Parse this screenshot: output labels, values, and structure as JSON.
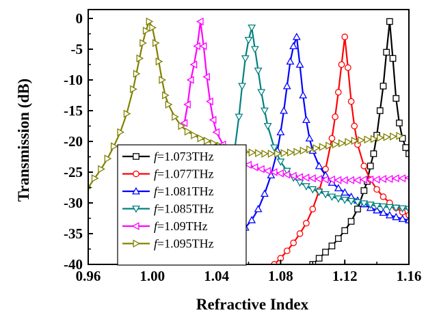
{
  "chart_data": {
    "type": "line",
    "xlabel": "Refractive Index",
    "ylabel": "Transmission (dB)",
    "xlim": [
      0.96,
      1.16
    ],
    "ylim": [
      -40,
      1
    ],
    "xticks": [
      0.96,
      1.0,
      1.04,
      1.08,
      1.12,
      1.16
    ],
    "xtick_labels": [
      "0.96",
      "1.00",
      "1.04",
      "1.08",
      "1.12",
      "1.16"
    ],
    "yticks": [
      0,
      -5,
      -10,
      -15,
      -20,
      -25,
      -30,
      -35,
      -40
    ],
    "ytick_labels": [
      "0",
      "-5",
      "-10",
      "-15",
      "-20",
      "-25",
      "-30",
      "-35",
      "-40"
    ],
    "legend_placement": "lower-left",
    "series": [
      {
        "name_prefix": "f",
        "name_suffix": "=1.073THz",
        "color": "#000000",
        "marker": "square",
        "x": [
          1.1,
          1.104,
          1.108,
          1.112,
          1.116,
          1.12,
          1.124,
          1.128,
          1.132,
          1.134,
          1.136,
          1.138,
          1.14,
          1.142,
          1.144,
          1.146,
          1.148,
          1.15,
          1.152,
          1.154,
          1.156,
          1.158,
          1.16
        ],
        "y": [
          -40.0,
          -39.0,
          -38.0,
          -37.0,
          -35.8,
          -34.5,
          -33.0,
          -31.0,
          -28.0,
          -26.5,
          -24.0,
          -22.0,
          -19.0,
          -15.0,
          -11.0,
          -5.5,
          -0.5,
          -6.5,
          -13.0,
          -17.0,
          -19.5,
          -21.0,
          -22.0
        ]
      },
      {
        "name_prefix": "f",
        "name_suffix": "=1.077THz",
        "color": "#ff0000",
        "marker": "circle",
        "x": [
          1.076,
          1.08,
          1.084,
          1.088,
          1.092,
          1.096,
          1.1,
          1.104,
          1.108,
          1.112,
          1.114,
          1.116,
          1.118,
          1.12,
          1.122,
          1.124,
          1.126,
          1.128,
          1.132,
          1.136,
          1.14,
          1.144,
          1.148,
          1.152,
          1.156,
          1.16
        ],
        "y": [
          -40.0,
          -39.0,
          -37.8,
          -36.5,
          -35.0,
          -33.3,
          -31.0,
          -28.0,
          -24.5,
          -19.5,
          -16.0,
          -12.0,
          -7.5,
          -3.0,
          -8.0,
          -13.5,
          -17.5,
          -20.5,
          -24.0,
          -26.2,
          -27.8,
          -29.0,
          -30.0,
          -30.8,
          -31.5,
          -32.0
        ]
      },
      {
        "name_prefix": "f",
        "name_suffix": "=1.081THz",
        "color": "#0000ff",
        "marker": "triangle-up",
        "x": [
          1.054,
          1.058,
          1.062,
          1.066,
          1.07,
          1.074,
          1.078,
          1.08,
          1.082,
          1.084,
          1.086,
          1.088,
          1.09,
          1.092,
          1.094,
          1.096,
          1.098,
          1.1,
          1.104,
          1.108,
          1.112,
          1.116,
          1.12,
          1.124,
          1.128,
          1.132,
          1.136,
          1.14,
          1.144,
          1.148,
          1.152,
          1.156,
          1.16
        ],
        "y": [
          -35.0,
          -34.0,
          -32.8,
          -31.0,
          -28.5,
          -25.5,
          -21.5,
          -18.5,
          -15.0,
          -11.0,
          -7.0,
          -4.5,
          -3.0,
          -7.5,
          -12.5,
          -16.5,
          -19.5,
          -21.5,
          -24.0,
          -25.5,
          -26.7,
          -27.6,
          -28.3,
          -29.0,
          -29.6,
          -30.2,
          -30.8,
          -31.2,
          -31.6,
          -32.0,
          -32.3,
          -32.6,
          -32.8
        ]
      },
      {
        "name_prefix": "f",
        "name_suffix": "=1.085THz",
        "color": "#008080",
        "marker": "triangle-down",
        "x": [
          1.046,
          1.05,
          1.054,
          1.056,
          1.058,
          1.06,
          1.062,
          1.064,
          1.066,
          1.068,
          1.07,
          1.072,
          1.076,
          1.08,
          1.084,
          1.088,
          1.092,
          1.096,
          1.1,
          1.104,
          1.108,
          1.112,
          1.116,
          1.12,
          1.124,
          1.128,
          1.132,
          1.136,
          1.14,
          1.144,
          1.148,
          1.152,
          1.156,
          1.16
        ],
        "y": [
          -30.0,
          -24.0,
          -16.0,
          -11.0,
          -6.5,
          -3.5,
          -1.5,
          -5.0,
          -8.5,
          -12.0,
          -15.0,
          -17.5,
          -21.0,
          -23.3,
          -24.8,
          -25.9,
          -26.7,
          -27.3,
          -27.8,
          -28.2,
          -28.6,
          -29.0,
          -29.3,
          -29.5,
          -29.7,
          -29.9,
          -30.1,
          -30.3,
          -30.5,
          -30.6,
          -30.7,
          -30.8,
          -30.9,
          -31.0
        ]
      },
      {
        "name_prefix": "f",
        "name_suffix": "=1.09THz",
        "color": "#ff00ff",
        "marker": "triangle-left",
        "x": [
          1.02,
          1.022,
          1.024,
          1.026,
          1.028,
          1.03,
          1.032,
          1.034,
          1.036,
          1.038,
          1.04,
          1.044,
          1.048,
          1.052,
          1.056,
          1.06,
          1.064,
          1.068,
          1.072,
          1.076,
          1.08,
          1.084,
          1.088,
          1.092,
          1.096,
          1.1,
          1.104,
          1.108,
          1.112,
          1.116,
          1.12,
          1.124,
          1.128,
          1.132,
          1.136,
          1.14,
          1.144,
          1.148,
          1.152,
          1.156,
          1.16
        ],
        "y": [
          -17.0,
          -14.0,
          -10.0,
          -7.5,
          -4.5,
          -0.5,
          -4.5,
          -9.5,
          -13.5,
          -16.5,
          -18.5,
          -20.5,
          -21.8,
          -22.7,
          -23.3,
          -23.8,
          -24.2,
          -24.5,
          -24.8,
          -25.0,
          -25.2,
          -25.4,
          -25.6,
          -25.8,
          -25.9,
          -26.0,
          -26.1,
          -26.2,
          -26.2,
          -26.3,
          -26.3,
          -26.3,
          -26.3,
          -26.2,
          -26.2,
          -26.2,
          -26.1,
          -26.1,
          -26.0,
          -26.0,
          -25.9
        ]
      },
      {
        "name_prefix": "f",
        "name_suffix": "=1.095THz",
        "color": "#808000",
        "marker": "triangle-right",
        "x": [
          0.96,
          0.964,
          0.968,
          0.972,
          0.976,
          0.98,
          0.984,
          0.988,
          0.99,
          0.992,
          0.994,
          0.996,
          0.998,
          1.0,
          1.002,
          1.004,
          1.006,
          1.008,
          1.01,
          1.014,
          1.018,
          1.022,
          1.026,
          1.03,
          1.034,
          1.038,
          1.042,
          1.046,
          1.05,
          1.054,
          1.058,
          1.062,
          1.066,
          1.07,
          1.074,
          1.078,
          1.082,
          1.086,
          1.09,
          1.094,
          1.098,
          1.102,
          1.106,
          1.11,
          1.114,
          1.118,
          1.122,
          1.126,
          1.13,
          1.134,
          1.138,
          1.142,
          1.146,
          1.15,
          1.154
        ],
        "y": [
          -27.5,
          -26.0,
          -24.5,
          -22.8,
          -20.8,
          -18.5,
          -15.5,
          -11.5,
          -9.0,
          -6.5,
          -4.0,
          -2.0,
          -0.5,
          -1.5,
          -4.0,
          -7.0,
          -10.0,
          -12.5,
          -14.0,
          -16.0,
          -17.5,
          -18.4,
          -19.0,
          -19.5,
          -19.9,
          -20.3,
          -20.7,
          -21.0,
          -21.3,
          -21.5,
          -21.7,
          -21.8,
          -21.9,
          -22.0,
          -22.0,
          -22.0,
          -21.9,
          -21.8,
          -21.7,
          -21.5,
          -21.3,
          -21.1,
          -20.9,
          -20.7,
          -20.5,
          -20.3,
          -20.1,
          -19.9,
          -19.8,
          -19.7,
          -19.6,
          -19.4,
          -19.3,
          -19.2,
          -19.1
        ]
      }
    ]
  }
}
